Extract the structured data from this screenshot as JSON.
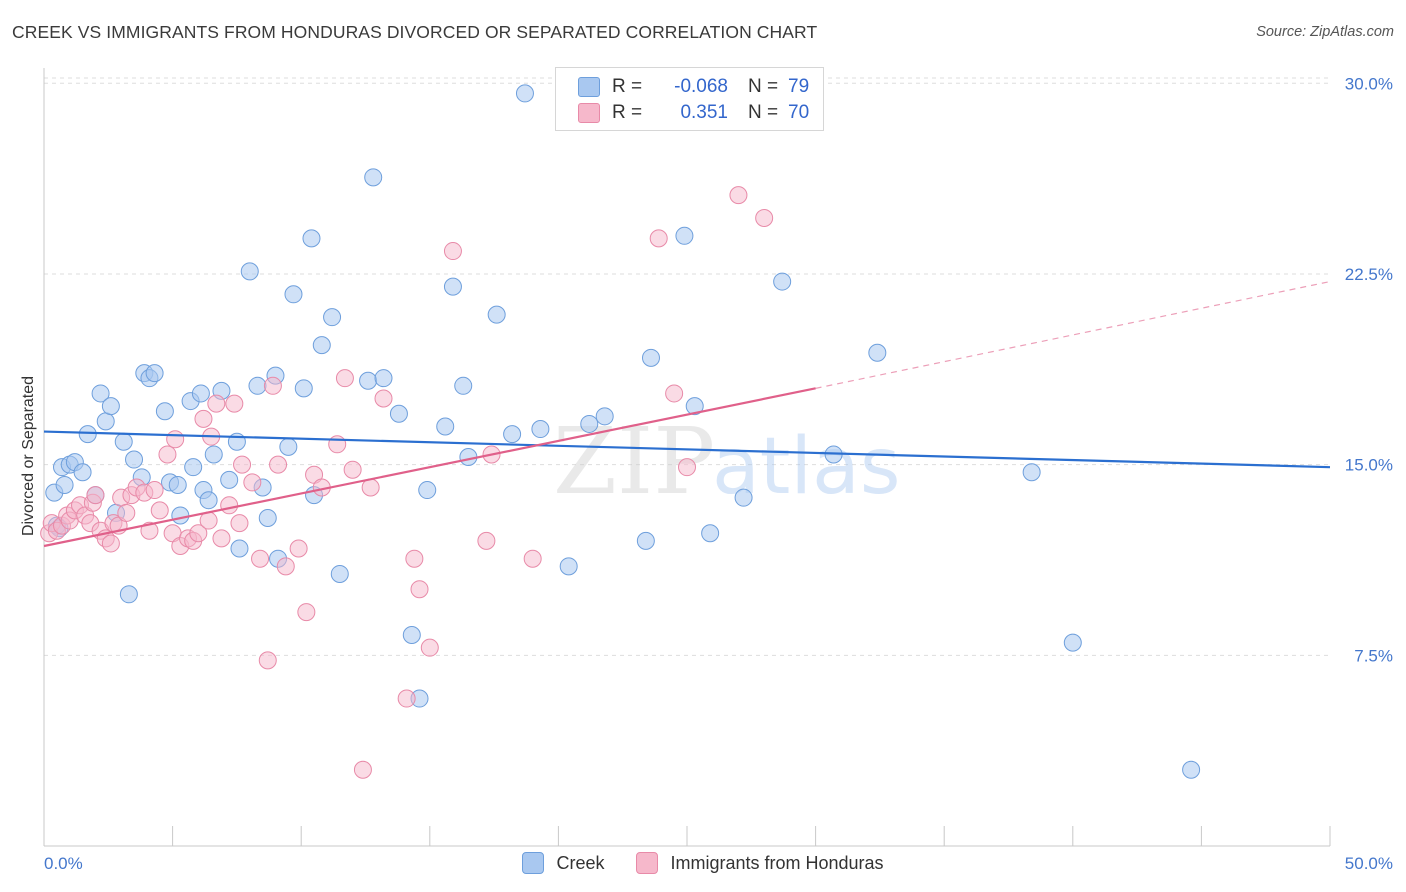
{
  "header": {
    "title": "CREEK VS IMMIGRANTS FROM HONDURAS DIVORCED OR SEPARATED CORRELATION CHART",
    "source": "Source: ZipAtlas.com"
  },
  "legend": {
    "rows": [
      {
        "r_label": "R =",
        "r_value": "-0.068",
        "n_label": "N =",
        "n_value": "79"
      },
      {
        "r_label": "R =",
        "r_value": "0.351",
        "n_label": "N =",
        "n_value": "70"
      }
    ]
  },
  "bottom_legend": {
    "series1": "Creek",
    "series2": "Immigrants from Honduras"
  },
  "watermark": {
    "zip": "ZIP",
    "atlas": "atlas"
  },
  "colors": {
    "creek_fill": "#a9c8f0",
    "creek_stroke": "#6e9fdc",
    "creek_line": "#2b6fd0",
    "honduras_fill": "#f6b8cb",
    "honduras_stroke": "#e88aa8",
    "honduras_line": "#e0608a",
    "tick_text": "#4477cc",
    "grid": "#dddddd"
  },
  "chart_data": {
    "type": "scatter",
    "title": "CREEK VS IMMIGRANTS FROM HONDURAS DIVORCED OR SEPARATED CORRELATION CHART",
    "xlabel": "",
    "ylabel": "Divorced or Separated",
    "xlim": [
      0,
      50
    ],
    "ylim": [
      0,
      30.6
    ],
    "x_tick_labels": [
      "0.0%",
      "50.0%"
    ],
    "y_ticks": [
      7.5,
      15.0,
      22.5,
      30.0
    ],
    "y_tick_labels": [
      "7.5%",
      "15.0%",
      "22.5%",
      "30.0%"
    ],
    "grid": "horizontal dashed",
    "legend_position": "top-center",
    "series": [
      {
        "name": "Creek",
        "R": -0.068,
        "N": 79,
        "trend": {
          "x": [
            0,
            50
          ],
          "y": [
            16.3,
            14.9
          ]
        },
        "points": [
          [
            0.4,
            13.9
          ],
          [
            0.5,
            12.6
          ],
          [
            0.6,
            12.5
          ],
          [
            0.7,
            14.9
          ],
          [
            0.8,
            14.2
          ],
          [
            1.0,
            15.0
          ],
          [
            1.2,
            15.1
          ],
          [
            1.5,
            14.7
          ],
          [
            1.7,
            16.2
          ],
          [
            2.0,
            13.8
          ],
          [
            2.2,
            17.8
          ],
          [
            2.4,
            16.7
          ],
          [
            2.6,
            17.3
          ],
          [
            2.8,
            13.1
          ],
          [
            3.1,
            15.9
          ],
          [
            3.3,
            9.9
          ],
          [
            3.5,
            15.2
          ],
          [
            3.8,
            14.5
          ],
          [
            3.9,
            18.6
          ],
          [
            4.1,
            18.4
          ],
          [
            4.3,
            18.6
          ],
          [
            4.7,
            17.1
          ],
          [
            4.9,
            14.3
          ],
          [
            5.2,
            14.2
          ],
          [
            5.3,
            13.0
          ],
          [
            5.7,
            17.5
          ],
          [
            5.8,
            14.9
          ],
          [
            6.1,
            17.8
          ],
          [
            6.2,
            14.0
          ],
          [
            6.4,
            13.6
          ],
          [
            6.6,
            15.4
          ],
          [
            6.9,
            17.9
          ],
          [
            7.2,
            14.4
          ],
          [
            7.5,
            15.9
          ],
          [
            7.6,
            11.7
          ],
          [
            8.0,
            22.6
          ],
          [
            8.3,
            18.1
          ],
          [
            8.5,
            14.1
          ],
          [
            8.7,
            12.9
          ],
          [
            9.0,
            18.5
          ],
          [
            9.1,
            11.3
          ],
          [
            9.5,
            15.7
          ],
          [
            9.7,
            21.7
          ],
          [
            10.1,
            18.0
          ],
          [
            10.4,
            23.9
          ],
          [
            10.5,
            13.8
          ],
          [
            10.8,
            19.7
          ],
          [
            11.2,
            20.8
          ],
          [
            11.5,
            10.7
          ],
          [
            12.6,
            18.3
          ],
          [
            12.8,
            26.3
          ],
          [
            13.2,
            18.4
          ],
          [
            13.8,
            17.0
          ],
          [
            14.3,
            8.3
          ],
          [
            14.6,
            5.8
          ],
          [
            14.9,
            14.0
          ],
          [
            15.6,
            16.5
          ],
          [
            15.9,
            22.0
          ],
          [
            16.3,
            18.1
          ],
          [
            16.5,
            15.3
          ],
          [
            17.6,
            20.9
          ],
          [
            18.2,
            16.2
          ],
          [
            18.7,
            29.6
          ],
          [
            19.3,
            16.4
          ],
          [
            20.4,
            11.0
          ],
          [
            21.2,
            16.6
          ],
          [
            21.8,
            16.9
          ],
          [
            23.4,
            12.0
          ],
          [
            23.6,
            19.2
          ],
          [
            24.9,
            24.0
          ],
          [
            25.3,
            17.3
          ],
          [
            25.9,
            12.3
          ],
          [
            27.2,
            13.7
          ],
          [
            28.7,
            22.2
          ],
          [
            30.7,
            15.4
          ],
          [
            32.4,
            19.4
          ],
          [
            38.4,
            14.7
          ],
          [
            40.0,
            8.0
          ],
          [
            44.6,
            3.0
          ]
        ]
      },
      {
        "name": "Immigrants from Honduras",
        "R": 0.351,
        "N": 70,
        "trend_solid": {
          "x": [
            0,
            30
          ],
          "y": [
            11.8,
            18.0
          ]
        },
        "trend_dashed": {
          "x": [
            30,
            50
          ],
          "y": [
            18.0,
            22.2
          ]
        },
        "points": [
          [
            0.2,
            12.3
          ],
          [
            0.3,
            12.7
          ],
          [
            0.5,
            12.4
          ],
          [
            0.7,
            12.6
          ],
          [
            0.9,
            13.0
          ],
          [
            1.0,
            12.8
          ],
          [
            1.2,
            13.2
          ],
          [
            1.4,
            13.4
          ],
          [
            1.6,
            13.0
          ],
          [
            1.8,
            12.7
          ],
          [
            1.9,
            13.5
          ],
          [
            2.0,
            13.8
          ],
          [
            2.2,
            12.4
          ],
          [
            2.4,
            12.1
          ],
          [
            2.6,
            11.9
          ],
          [
            2.7,
            12.7
          ],
          [
            2.9,
            12.6
          ],
          [
            3.0,
            13.7
          ],
          [
            3.2,
            13.1
          ],
          [
            3.4,
            13.8
          ],
          [
            3.6,
            14.1
          ],
          [
            3.9,
            13.9
          ],
          [
            4.1,
            12.4
          ],
          [
            4.3,
            14.0
          ],
          [
            4.5,
            13.2
          ],
          [
            4.8,
            15.4
          ],
          [
            5.0,
            12.3
          ],
          [
            5.1,
            16.0
          ],
          [
            5.3,
            11.8
          ],
          [
            5.6,
            12.1
          ],
          [
            5.8,
            12.0
          ],
          [
            6.0,
            12.3
          ],
          [
            6.2,
            16.8
          ],
          [
            6.4,
            12.8
          ],
          [
            6.5,
            16.1
          ],
          [
            6.7,
            17.4
          ],
          [
            6.9,
            12.1
          ],
          [
            7.2,
            13.4
          ],
          [
            7.4,
            17.4
          ],
          [
            7.6,
            12.7
          ],
          [
            7.7,
            15.0
          ],
          [
            8.1,
            14.3
          ],
          [
            8.4,
            11.3
          ],
          [
            8.9,
            18.1
          ],
          [
            9.1,
            15.0
          ],
          [
            9.4,
            11.0
          ],
          [
            9.9,
            11.7
          ],
          [
            10.2,
            9.2
          ],
          [
            10.5,
            14.6
          ],
          [
            10.8,
            14.1
          ],
          [
            11.4,
            15.8
          ],
          [
            11.7,
            18.4
          ],
          [
            12.0,
            14.8
          ],
          [
            12.4,
            3.0
          ],
          [
            12.7,
            14.1
          ],
          [
            13.2,
            17.6
          ],
          [
            14.1,
            5.8
          ],
          [
            14.4,
            11.3
          ],
          [
            14.6,
            10.1
          ],
          [
            15.0,
            7.8
          ],
          [
            15.9,
            23.4
          ],
          [
            17.2,
            12.0
          ],
          [
            17.4,
            15.4
          ],
          [
            19.0,
            11.3
          ],
          [
            23.9,
            23.9
          ],
          [
            24.5,
            17.8
          ],
          [
            25.0,
            14.9
          ],
          [
            27.0,
            25.6
          ],
          [
            28.0,
            24.7
          ],
          [
            8.7,
            7.3
          ]
        ]
      }
    ]
  }
}
